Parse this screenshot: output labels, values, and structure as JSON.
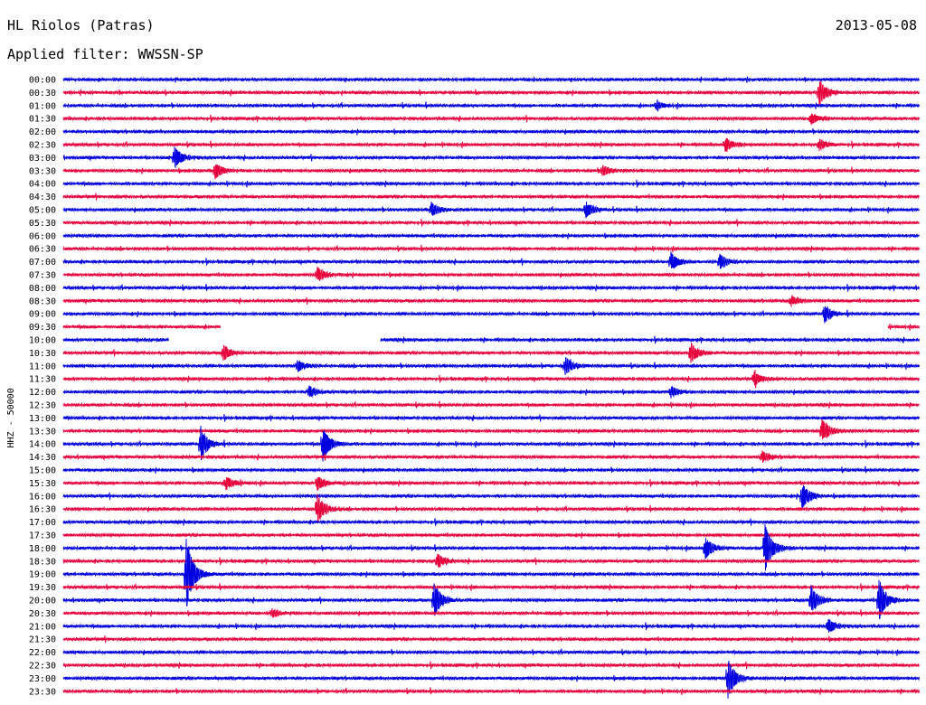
{
  "header": {
    "station": "HL Riolos (Patras)",
    "date": "2013-05-08",
    "filter": "Applied filter: WWSSN-SP"
  },
  "colors": {
    "trace_a": "#0000e0",
    "trace_b": "#e8003c",
    "background": "#ffffff"
  },
  "chart_data": {
    "type": "line",
    "title": "HL Riolos (Patras)",
    "date": "2013-05-08",
    "filter": "WWSSN-SP",
    "ylabel": "HHZ - 50000",
    "xlabel": "",
    "row_labels": [
      "00:00",
      "00:30",
      "01:00",
      "01:30",
      "02:00",
      "02:30",
      "03:00",
      "03:30",
      "04:00",
      "04:30",
      "05:00",
      "05:30",
      "06:00",
      "06:30",
      "07:00",
      "07:30",
      "08:00",
      "08:30",
      "09:00",
      "09:30",
      "10:00",
      "10:30",
      "11:00",
      "11:30",
      "12:00",
      "12:30",
      "13:00",
      "13:30",
      "14:00",
      "14:30",
      "15:00",
      "15:30",
      "16:00",
      "16:30",
      "17:00",
      "17:30",
      "18:00",
      "18:30",
      "19:00",
      "19:30",
      "20:00",
      "20:30",
      "21:00",
      "21:30",
      "22:00",
      "22:30",
      "23:00",
      "23:30"
    ],
    "row_colors": [
      "blue",
      "red"
    ],
    "events": [
      {
        "row": "00:30",
        "minute": 26.5,
        "amp": 14
      },
      {
        "row": "01:00",
        "minute": 20.8,
        "amp": 4
      },
      {
        "row": "01:30",
        "minute": 26.2,
        "amp": 6
      },
      {
        "row": "02:30",
        "minute": 23.2,
        "amp": 7
      },
      {
        "row": "02:30",
        "minute": 26.5,
        "amp": 6
      },
      {
        "row": "03:00",
        "minute": 3.9,
        "amp": 11
      },
      {
        "row": "03:30",
        "minute": 5.3,
        "amp": 9
      },
      {
        "row": "03:30",
        "minute": 18.9,
        "amp": 5
      },
      {
        "row": "05:00",
        "minute": 12.9,
        "amp": 8
      },
      {
        "row": "05:00",
        "minute": 18.3,
        "amp": 9
      },
      {
        "row": "07:00",
        "minute": 21.3,
        "amp": 10
      },
      {
        "row": "07:00",
        "minute": 23.0,
        "amp": 8
      },
      {
        "row": "07:30",
        "minute": 8.9,
        "amp": 8
      },
      {
        "row": "08:30",
        "minute": 25.5,
        "amp": 6
      },
      {
        "row": "09:00",
        "minute": 26.7,
        "amp": 9
      },
      {
        "row": "10:30",
        "minute": 5.6,
        "amp": 8
      },
      {
        "row": "10:30",
        "minute": 22.0,
        "amp": 11
      },
      {
        "row": "11:00",
        "minute": 8.2,
        "amp": 6
      },
      {
        "row": "11:00",
        "minute": 17.6,
        "amp": 9
      },
      {
        "row": "11:30",
        "minute": 24.2,
        "amp": 8
      },
      {
        "row": "12:00",
        "minute": 8.6,
        "amp": 7
      },
      {
        "row": "12:00",
        "minute": 21.3,
        "amp": 6
      },
      {
        "row": "13:30",
        "minute": 26.6,
        "amp": 12
      },
      {
        "row": "14:00",
        "minute": 4.8,
        "amp": 18
      },
      {
        "row": "14:00",
        "minute": 9.1,
        "amp": 18
      },
      {
        "row": "14:30",
        "minute": 24.5,
        "amp": 6
      },
      {
        "row": "15:30",
        "minute": 5.7,
        "amp": 7
      },
      {
        "row": "15:30",
        "minute": 8.9,
        "amp": 8
      },
      {
        "row": "16:00",
        "minute": 25.9,
        "amp": 14
      },
      {
        "row": "16:30",
        "minute": 8.9,
        "amp": 16
      },
      {
        "row": "18:00",
        "minute": 22.5,
        "amp": 12
      },
      {
        "row": "18:00",
        "minute": 24.6,
        "amp": 26
      },
      {
        "row": "18:30",
        "minute": 13.1,
        "amp": 8
      },
      {
        "row": "19:00",
        "minute": 4.3,
        "amp": 40
      },
      {
        "row": "20:00",
        "minute": 13.0,
        "amp": 18
      },
      {
        "row": "20:00",
        "minute": 26.2,
        "amp": 16
      },
      {
        "row": "20:00",
        "minute": 28.6,
        "amp": 22
      },
      {
        "row": "20:30",
        "minute": 7.3,
        "amp": 5
      },
      {
        "row": "21:00",
        "minute": 26.8,
        "amp": 8
      },
      {
        "row": "23:00",
        "minute": 23.3,
        "amp": 22
      }
    ],
    "gaps": [
      {
        "row": "09:30",
        "from_minute": 5.5,
        "to_minute": 28.9
      },
      {
        "row": "10:00",
        "from_minute": 3.7,
        "to_minute": 11.1
      }
    ]
  }
}
